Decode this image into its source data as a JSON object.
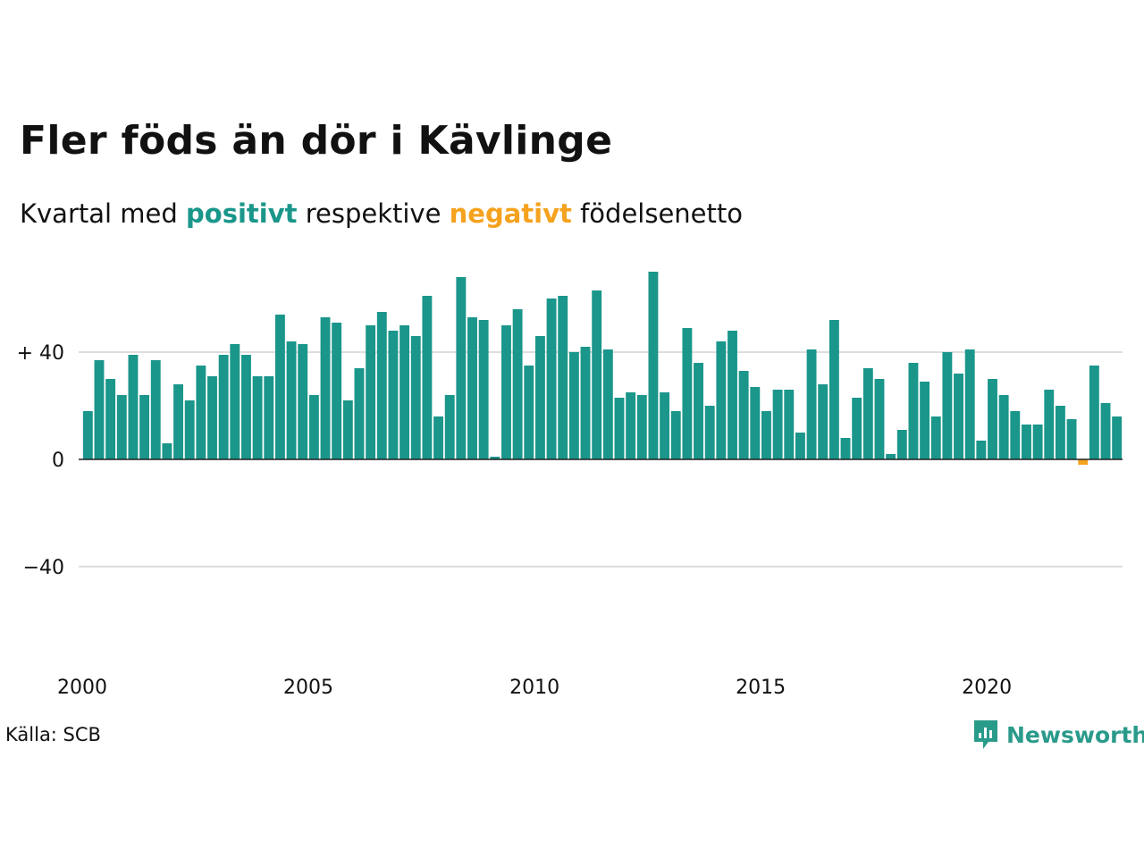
{
  "title": "Fler föds än dör i Kävlinge",
  "subtitle": {
    "prefix": "Kvartal med ",
    "positive": "positivt",
    "middle": " respektive ",
    "negative": "negativt",
    "suffix": " födelsenetto"
  },
  "source": "Källa: SCB",
  "brand": "Newsworthy",
  "colors": {
    "positive": "#1a968a",
    "negative": "#f5a21f",
    "brand": "#2a9a8a",
    "grid": "#dddddd"
  },
  "chart_data": {
    "type": "bar",
    "title": "Fler föds än dör i Kävlinge",
    "xlabel": "",
    "ylabel": "",
    "ylim": [
      -65,
      72
    ],
    "grid": true,
    "y_ticks": [
      {
        "value": 40,
        "label": "+ 40"
      },
      {
        "value": 0,
        "label": "0"
      },
      {
        "value": -40,
        "label": "−40"
      }
    ],
    "x_ticks": [
      "2000",
      "2005",
      "2010",
      "2015",
      "2020"
    ],
    "x_start": "2000 Q1",
    "values": [
      18,
      37,
      30,
      24,
      39,
      24,
      37,
      6,
      28,
      22,
      35,
      31,
      39,
      43,
      39,
      31,
      31,
      54,
      44,
      43,
      24,
      53,
      51,
      22,
      34,
      50,
      55,
      48,
      50,
      46,
      61,
      16,
      24,
      68,
      53,
      52,
      1,
      50,
      56,
      35,
      46,
      60,
      61,
      40,
      42,
      63,
      41,
      23,
      25,
      24,
      70,
      25,
      18,
      49,
      36,
      20,
      44,
      48,
      33,
      27,
      18,
      26,
      26,
      10,
      41,
      28,
      52,
      8,
      23,
      34,
      30,
      2,
      11,
      36,
      29,
      16,
      40,
      32,
      41,
      7,
      30,
      24,
      18,
      13,
      13,
      26,
      20,
      15,
      -2,
      35,
      21,
      16
    ]
  }
}
